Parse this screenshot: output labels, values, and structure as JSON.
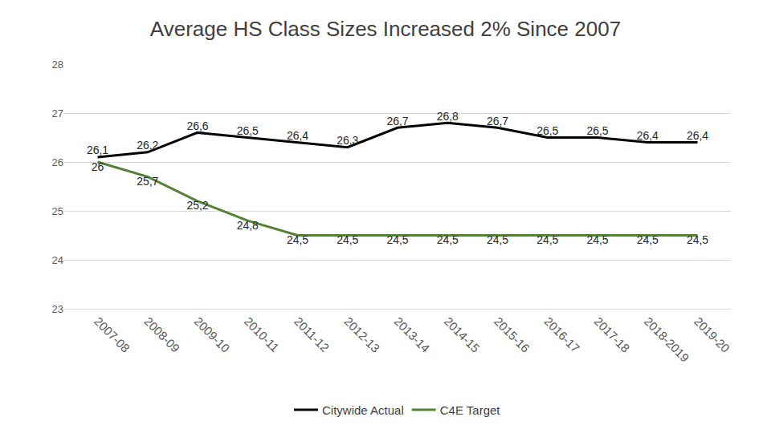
{
  "chart_data": {
    "type": "line",
    "title": "Average HS Class Sizes Increased 2% Since 2007",
    "categories": [
      "2007-08",
      "2008-09",
      "2009-10",
      "2010-11",
      "2011-12",
      "2012-13",
      "2013-14",
      "2014-15",
      "2015-16",
      "2016-17",
      "2017-18",
      "2018-2019",
      "2019-20"
    ],
    "series": [
      {
        "name": "Citywide Actual",
        "color": "#000000",
        "values": [
          26.1,
          26.2,
          26.6,
          26.5,
          26.4,
          26.3,
          26.7,
          26.8,
          26.7,
          26.5,
          26.5,
          26.4,
          26.4
        ],
        "value_labels": [
          "26,1",
          "26,2",
          "26,6",
          "26,5",
          "26,4",
          "26,3",
          "26,7",
          "26,8",
          "26,7",
          "26,5",
          "26,5",
          "26,4",
          "26,4"
        ]
      },
      {
        "name": "C4E Target",
        "color": "#548235",
        "values": [
          26,
          25.7,
          25.2,
          24.8,
          24.5,
          24.5,
          24.5,
          24.5,
          24.5,
          24.5,
          24.5,
          24.5,
          24.5
        ],
        "value_labels": [
          "26",
          "25,7",
          "25,2",
          "24,8",
          "24,5",
          "24,5",
          "24,5",
          "24,5",
          "24,5",
          "24,5",
          "24,5",
          "24,5",
          "24,5"
        ]
      }
    ],
    "ylim": [
      23,
      28
    ],
    "yticks": [
      23,
      24,
      25,
      26,
      27,
      28
    ],
    "grid": true,
    "legend": "bottom",
    "data_labels": true
  }
}
